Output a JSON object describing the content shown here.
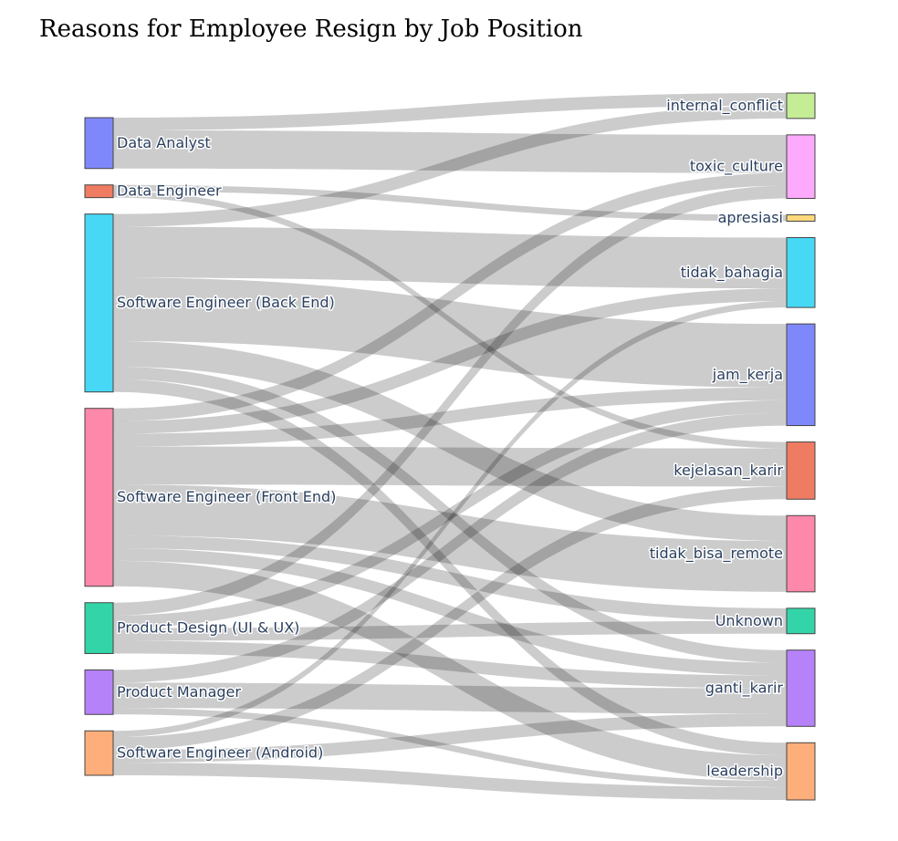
{
  "chart_data": {
    "type": "sankey",
    "title": "Reasons for Employee Resign by Job Position",
    "sources": [
      {
        "name": "Data Analyst",
        "color": "#7f88fb"
      },
      {
        "name": "Data Engineer",
        "color": "#ef7b62"
      },
      {
        "name": "Software Engineer (Back End)",
        "color": "#46d8f5"
      },
      {
        "name": "Software Engineer (Front End)",
        "color": "#fd88a9"
      },
      {
        "name": "Product Design (UI & UX)",
        "color": "#33d5a8"
      },
      {
        "name": "Product Manager",
        "color": "#b682f9"
      },
      {
        "name": "Software Engineer (Android)",
        "color": "#feae7a"
      }
    ],
    "targets": [
      {
        "name": "internal_conflict",
        "color": "#c5ed96"
      },
      {
        "name": "toxic_culture",
        "color": "#feaafc"
      },
      {
        "name": "apresiasi",
        "color": "#fdd97c"
      },
      {
        "name": "tidak_bahagia",
        "color": "#46d8f5"
      },
      {
        "name": "jam_kerja",
        "color": "#7f88fb"
      },
      {
        "name": "kejelasan_karir",
        "color": "#ef7b62"
      },
      {
        "name": "tidak_bisa_remote",
        "color": "#fd88a9"
      },
      {
        "name": "Unknown",
        "color": "#33d5a8"
      },
      {
        "name": "ganti_karir",
        "color": "#b682f9"
      },
      {
        "name": "leadership",
        "color": "#feae7a"
      }
    ],
    "links": [
      {
        "source": "Data Analyst",
        "target": "internal_conflict",
        "value": 1
      },
      {
        "source": "Data Analyst",
        "target": "toxic_culture",
        "value": 3
      },
      {
        "source": "Data Engineer",
        "target": "apresiasi",
        "value": 0.5
      },
      {
        "source": "Data Engineer",
        "target": "kejelasan_karir",
        "value": 0.5
      },
      {
        "source": "Software Engineer (Back End)",
        "target": "internal_conflict",
        "value": 1
      },
      {
        "source": "Software Engineer (Back End)",
        "target": "tidak_bahagia",
        "value": 4
      },
      {
        "source": "Software Engineer (Back End)",
        "target": "jam_kerja",
        "value": 5
      },
      {
        "source": "Software Engineer (Back End)",
        "target": "tidak_bisa_remote",
        "value": 2
      },
      {
        "source": "Software Engineer (Back End)",
        "target": "ganti_karir",
        "value": 1
      },
      {
        "source": "Software Engineer (Back End)",
        "target": "leadership",
        "value": 1
      },
      {
        "source": "Software Engineer (Front End)",
        "target": "toxic_culture",
        "value": 1
      },
      {
        "source": "Software Engineer (Front End)",
        "target": "tidak_bahagia",
        "value": 1
      },
      {
        "source": "Software Engineer (Front End)",
        "target": "jam_kerja",
        "value": 1
      },
      {
        "source": "Software Engineer (Front End)",
        "target": "kejelasan_karir",
        "value": 3
      },
      {
        "source": "Software Engineer (Front End)",
        "target": "tidak_bisa_remote",
        "value": 4
      },
      {
        "source": "Software Engineer (Front End)",
        "target": "Unknown",
        "value": 1
      },
      {
        "source": "Software Engineer (Front End)",
        "target": "ganti_karir",
        "value": 1
      },
      {
        "source": "Software Engineer (Front End)",
        "target": "leadership",
        "value": 2
      },
      {
        "source": "Product Design (UI & UX)",
        "target": "toxic_culture",
        "value": 1
      },
      {
        "source": "Product Design (UI & UX)",
        "target": "jam_kerja",
        "value": 1
      },
      {
        "source": "Product Design (UI & UX)",
        "target": "Unknown",
        "value": 1
      },
      {
        "source": "Product Design (UI & UX)",
        "target": "ganti_karir",
        "value": 1
      },
      {
        "source": "Product Manager",
        "target": "jam_kerja",
        "value": 1
      },
      {
        "source": "Product Manager",
        "target": "ganti_karir",
        "value": 2
      },
      {
        "source": "Product Manager",
        "target": "leadership",
        "value": 0.5
      },
      {
        "source": "Software Engineer (Android)",
        "target": "tidak_bahagia",
        "value": 0.5
      },
      {
        "source": "Software Engineer (Android)",
        "target": "kejelasan_karir",
        "value": 1
      },
      {
        "source": "Software Engineer (Android)",
        "target": "ganti_karir",
        "value": 1
      },
      {
        "source": "Software Engineer (Android)",
        "target": "leadership",
        "value": 1
      }
    ]
  }
}
